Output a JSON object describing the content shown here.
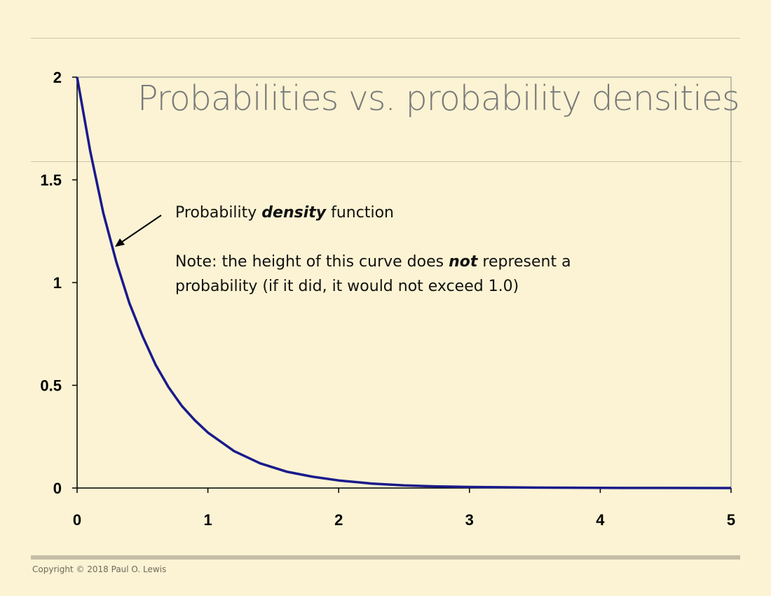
{
  "slide": {
    "title": "Probabilities vs. probability densities",
    "copyright": "Copyright © 2018 Paul O. Lewis",
    "annotation": {
      "pdf_prefix": "Probability ",
      "pdf_emphasis": "density",
      "pdf_suffix": " function",
      "note_prefix": "Note: the height of this curve does ",
      "note_emphasis": "not",
      "note_suffix": " represent a",
      "note_line2": "probability (if it did, it would not exceed 1.0)"
    }
  },
  "colors": {
    "background": "#fbf3d3",
    "curve": "#1a1a8c",
    "title": "#7a7a7a",
    "axis": "#000000",
    "plot_border": "#8a8a8a"
  },
  "chart_data": {
    "type": "line",
    "title": "",
    "xlabel": "",
    "ylabel": "",
    "xlim": [
      0,
      5
    ],
    "ylim": [
      0,
      2
    ],
    "x_ticks": [
      "0",
      "1",
      "2",
      "3",
      "4",
      "5"
    ],
    "y_ticks": [
      "0",
      "0.5",
      "1",
      "1.5",
      "2"
    ],
    "grid": false,
    "legend": "none",
    "series": [
      {
        "x": [
          0,
          0.1,
          0.2,
          0.3,
          0.4,
          0.5,
          0.6,
          0.7,
          0.8,
          0.9,
          1.0,
          1.2,
          1.4,
          1.6,
          1.8,
          2.0,
          2.25,
          2.5,
          2.75,
          3.0,
          3.5,
          4.0,
          4.5,
          5.0
        ],
        "y": [
          2.0,
          1.64,
          1.34,
          1.1,
          0.9,
          0.74,
          0.6,
          0.49,
          0.4,
          0.33,
          0.27,
          0.18,
          0.12,
          0.08,
          0.055,
          0.037,
          0.022,
          0.013,
          0.008,
          0.005,
          0.002,
          0.0007,
          0.0002,
          0.0001
        ]
      }
    ]
  }
}
